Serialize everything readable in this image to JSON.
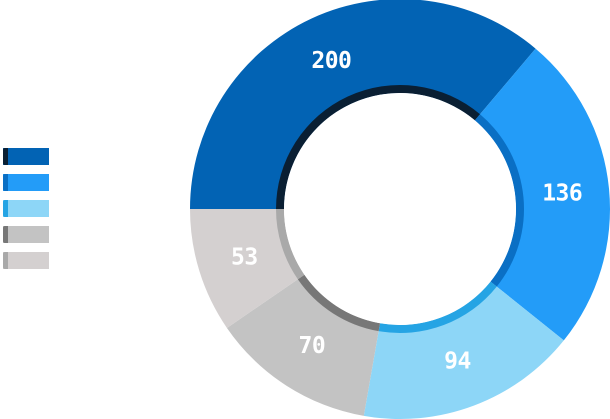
{
  "chart_data": {
    "type": "pie",
    "subtype": "donut",
    "title": "",
    "legend_position": "left",
    "slices": [
      {
        "value": 200,
        "label": "200",
        "name": "",
        "color": "#0263b4",
        "edge_color": "#0a1f33"
      },
      {
        "value": 136,
        "label": "136",
        "name": "",
        "color": "#239cf8",
        "edge_color": "#0a6fc4"
      },
      {
        "value": 94,
        "label": "94",
        "name": "",
        "color": "#8dd6f7",
        "edge_color": "#25a4e4"
      },
      {
        "value": 70,
        "label": "70",
        "name": "",
        "color": "#c3c3c3",
        "edge_color": "#777777"
      },
      {
        "value": 53,
        "label": "53",
        "name": "",
        "color": "#d4d0d0",
        "edge_color": "#a9a9a9"
      }
    ]
  }
}
